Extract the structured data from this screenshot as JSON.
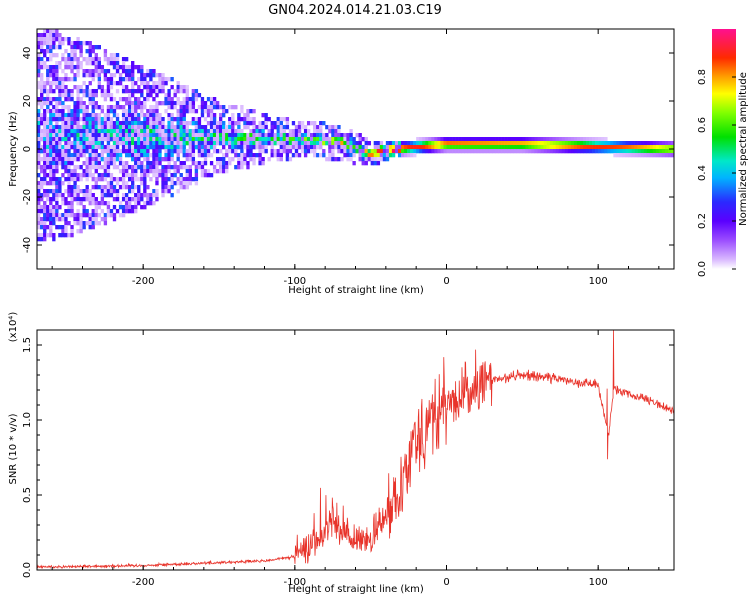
{
  "chart_data": [
    {
      "type": "heatmap",
      "title": "GN04.2024.014.21.03.C19",
      "xlabel": "Height of straight line (km)",
      "ylabel": "Frequency (Hz)",
      "xlim": [
        -270,
        150
      ],
      "ylim": [
        -50,
        50
      ],
      "x_ticks": [
        -200,
        -100,
        0,
        100
      ],
      "y_ticks": [
        -40,
        -20,
        0,
        20,
        40
      ],
      "colorbar": {
        "label": "Normalized spectral amplitude",
        "range": [
          0,
          1
        ],
        "ticks": [
          "0.0",
          "0.2",
          "0.4",
          "0.6",
          "0.8"
        ]
      },
      "description_points": {
        "band_center_hz": [
          {
            "x": -260,
            "y": 6
          },
          {
            "x": -200,
            "y": 5
          },
          {
            "x": -150,
            "y": 5
          },
          {
            "x": -100,
            "y": 4
          },
          {
            "x": -70,
            "y": 3
          },
          {
            "x": -50,
            "y": -2
          },
          {
            "x": -35,
            "y": 0
          },
          {
            "x": 0,
            "y": 2
          },
          {
            "x": 50,
            "y": 2
          },
          {
            "x": 100,
            "y": 1
          },
          {
            "x": 150,
            "y": 0
          }
        ],
        "band_halfwidth_hz": [
          {
            "x": -260,
            "y": 45
          },
          {
            "x": -200,
            "y": 30
          },
          {
            "x": -150,
            "y": 15
          },
          {
            "x": -100,
            "y": 8
          },
          {
            "x": -60,
            "y": 7
          },
          {
            "x": -35,
            "y": 3
          },
          {
            "x": 0,
            "y": 3
          },
          {
            "x": 150,
            "y": 3
          }
        ],
        "band_peak_amplitude": [
          {
            "x": -260,
            "y": 0.15
          },
          {
            "x": -200,
            "y": 0.25
          },
          {
            "x": -120,
            "y": 0.3
          },
          {
            "x": -80,
            "y": 0.45
          },
          {
            "x": -50,
            "y": 0.6
          },
          {
            "x": -30,
            "y": 0.9
          },
          {
            "x": 0,
            "y": 0.9
          },
          {
            "x": 50,
            "y": 0.85
          },
          {
            "x": 90,
            "y": 0.9
          },
          {
            "x": 120,
            "y": 0.85
          },
          {
            "x": 150,
            "y": 0.8
          }
        ]
      }
    },
    {
      "type": "line",
      "xlabel": "Height of straight line (km)",
      "ylabel": "SNR (10 * v/v)",
      "y_multiplier": "(x10⁴)",
      "xlim": [
        -270,
        150
      ],
      "ylim": [
        0,
        1.6
      ],
      "x_ticks": [
        -200,
        -100,
        0,
        100
      ],
      "y_ticks": [
        "0.0",
        "0.5",
        "1.0",
        "1.5"
      ],
      "series": [
        {
          "color": "#e8332a",
          "envelope": [
            {
              "x": -270,
              "y": 0.02
            },
            {
              "x": -200,
              "y": 0.03
            },
            {
              "x": -150,
              "y": 0.05
            },
            {
              "x": -120,
              "y": 0.06
            },
            {
              "x": -100,
              "y": 0.09
            },
            {
              "x": -85,
              "y": 0.2
            },
            {
              "x": -75,
              "y": 0.35
            },
            {
              "x": -65,
              "y": 0.2
            },
            {
              "x": -50,
              "y": 0.2
            },
            {
              "x": -40,
              "y": 0.35
            },
            {
              "x": -30,
              "y": 0.6
            },
            {
              "x": -20,
              "y": 0.9
            },
            {
              "x": -10,
              "y": 1.0
            },
            {
              "x": 0,
              "y": 1.1
            },
            {
              "x": 10,
              "y": 1.15
            },
            {
              "x": 20,
              "y": 1.22
            },
            {
              "x": 30,
              "y": 1.27
            },
            {
              "x": 50,
              "y": 1.3
            },
            {
              "x": 70,
              "y": 1.28
            },
            {
              "x": 90,
              "y": 1.25
            },
            {
              "x": 100,
              "y": 1.23
            },
            {
              "x": 107,
              "y": 0.9
            },
            {
              "x": 110,
              "y": 1.2
            },
            {
              "x": 130,
              "y": 1.14
            },
            {
              "x": 150,
              "y": 1.06
            }
          ]
        }
      ]
    }
  ]
}
